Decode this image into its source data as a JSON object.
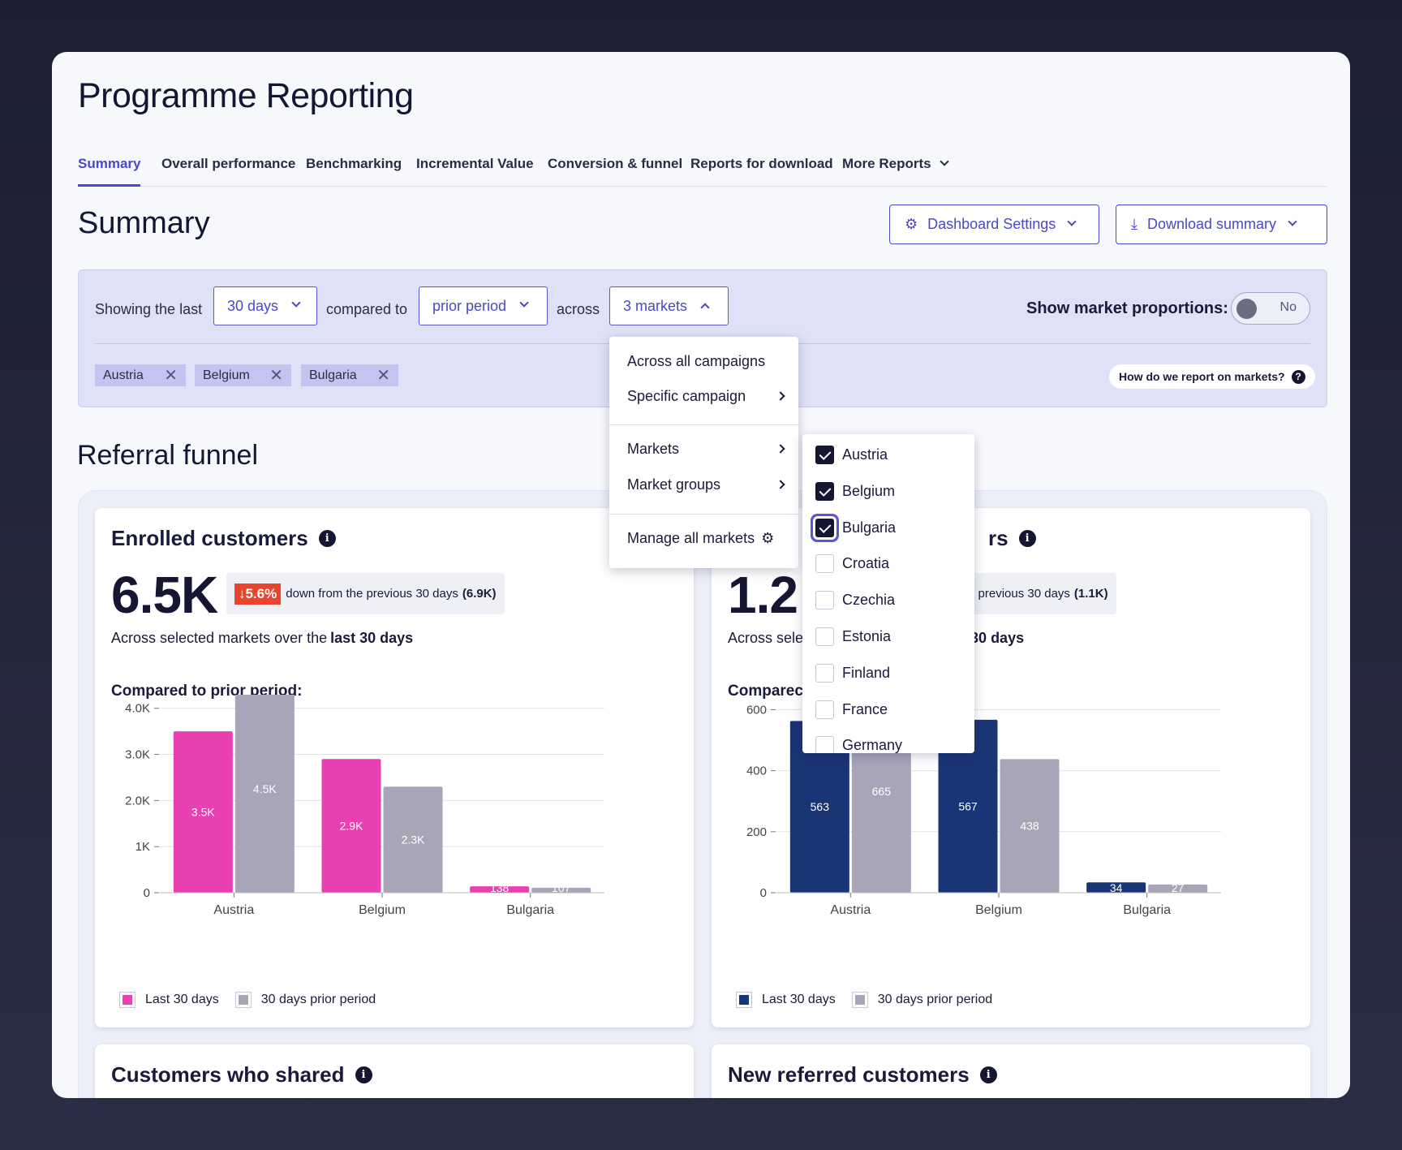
{
  "app": {
    "title": "Programme Reporting"
  },
  "tabs": [
    {
      "label": "Summary",
      "active": true
    },
    {
      "label": "Overall performance"
    },
    {
      "label": "Benchmarking"
    },
    {
      "label": "Incremental Value"
    },
    {
      "label": "Conversion & funnel"
    },
    {
      "label": "Reports for download"
    },
    {
      "label": "More Reports"
    }
  ],
  "page": {
    "title": "Summary",
    "dashboard_settings_label": "Dashboard Settings",
    "download_summary_label": "Download summary"
  },
  "filters": {
    "showing_label": "Showing the last",
    "period_value": "30 days",
    "compared_label": "compared to",
    "compare_value": "prior period",
    "across_label": "across",
    "markets_value": "3 markets",
    "show_proportions_label": "Show market proportions:",
    "toggle_label": "No",
    "help_label": "How do we report on markets?",
    "help_icon": "?",
    "chips": [
      "Austria",
      "Belgium",
      "Bulgaria"
    ]
  },
  "dropdown": {
    "items": [
      "Across all campaigns",
      "Specific campaign",
      "Markets",
      "Market groups",
      "Manage all markets"
    ]
  },
  "market_list": [
    {
      "name": "Austria",
      "checked": true
    },
    {
      "name": "Belgium",
      "checked": true
    },
    {
      "name": "Bulgaria",
      "checked": true
    },
    {
      "name": "Croatia",
      "checked": false
    },
    {
      "name": "Czechia",
      "checked": false
    },
    {
      "name": "Estonia",
      "checked": false
    },
    {
      "name": "Finland",
      "checked": false
    },
    {
      "name": "France",
      "checked": false
    },
    {
      "name": "Germany",
      "checked": false
    }
  ],
  "funnel": {
    "title": "Referral funnel"
  },
  "cards": {
    "enrolled": {
      "title": "Enrolled customers",
      "info_icon": "i",
      "value": "6.5K",
      "delta_badge": "↓5.6%",
      "delta_text": "down from the previous 30 days",
      "delta_prev": "(6.9K)",
      "sub_text": "Across selected markets over the",
      "sub_bold": "last 30 days",
      "compare_label": "Compared to prior period:"
    },
    "second": {
      "title": "rs",
      "info_icon": "i",
      "value": "1.2",
      "delta_text": "e previous 30 days",
      "delta_prev": "(1.1K)",
      "sub_text": "Across sele",
      "sub_bold": "t 30 days",
      "compare_label": "Comparec"
    },
    "shared": {
      "title": "Customers who shared",
      "info_icon": "i"
    },
    "new_referred": {
      "title": "New referred customers",
      "info_icon": "i"
    }
  },
  "legend": {
    "last": "Last 30 days",
    "prior": "30 days prior period"
  },
  "colors": {
    "accent": "#4b47c8",
    "pink": "#e840b0",
    "grey": "#a8a5b8",
    "navy": "#1a3576",
    "down": "#e8452c"
  },
  "chart_data": [
    {
      "type": "bar",
      "categories": [
        "Austria",
        "Belgium",
        "Bulgaria"
      ],
      "series": [
        {
          "name": "Last 30 days",
          "values": [
            3500,
            2900,
            138
          ],
          "labels": [
            "3.5K",
            "2.9K",
            "138"
          ]
        },
        {
          "name": "30 days prior period",
          "values": [
            4500,
            2300,
            107
          ],
          "labels": [
            "4.5K",
            "2.3K",
            "107"
          ]
        }
      ],
      "yticks": [
        "0",
        "1K",
        "2.0K",
        "3.0K",
        "4.0K"
      ],
      "ytick_values": [
        0,
        1000,
        2000,
        3000,
        4000
      ],
      "ylim": [
        0,
        4400
      ]
    },
    {
      "type": "bar",
      "categories": [
        "Austria",
        "Belgium",
        "Bulgaria"
      ],
      "series": [
        {
          "name": "Last 30 days",
          "values": [
            563,
            567,
            34
          ],
          "labels": [
            "563",
            "567",
            "34"
          ]
        },
        {
          "name": "30 days prior period",
          "values": [
            665,
            438,
            27
          ],
          "labels": [
            "665",
            "438",
            "27"
          ]
        }
      ],
      "yticks": [
        "0",
        "200",
        "400",
        "600"
      ],
      "ytick_values": [
        0,
        200,
        400,
        600
      ],
      "ylim": [
        0,
        665
      ]
    }
  ]
}
